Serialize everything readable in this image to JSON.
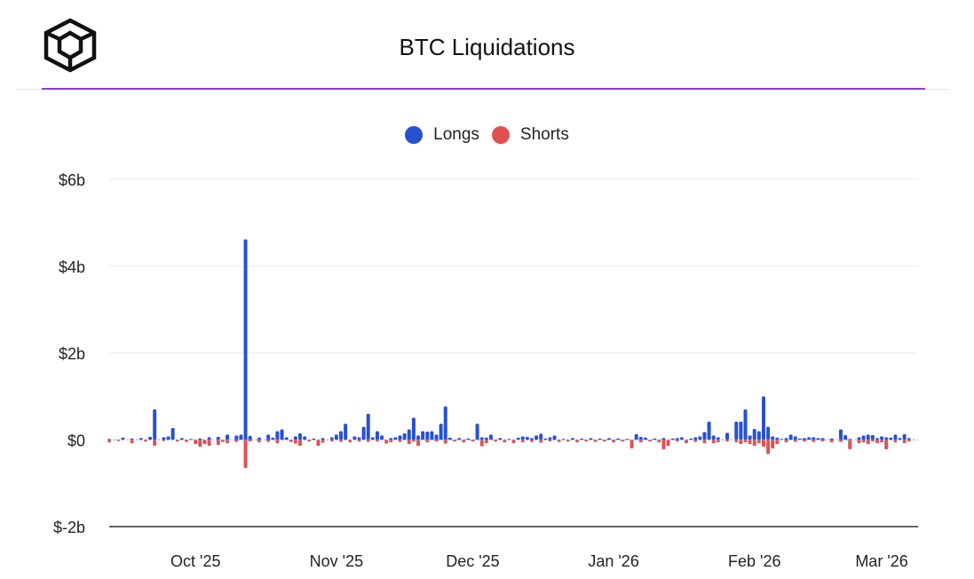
{
  "header": {
    "title": "BTC Liquidations",
    "logo_icon": "cube-logo-icon"
  },
  "colors": {
    "longs": "#2752cf",
    "shorts": "#e05252",
    "accent": "#9333ea",
    "grid": "#ebebeb",
    "axis": "#333333"
  },
  "chart_data": {
    "type": "bar",
    "title": "BTC Liquidations",
    "xlabel": "",
    "ylabel": "",
    "ylim": [
      -2,
      6
    ],
    "y_unit": "billions USD",
    "yticks": [
      6,
      4,
      2,
      0,
      -2
    ],
    "ytick_labels": [
      "$6b",
      "$4b",
      "$2b",
      "$0",
      "$-2b"
    ],
    "x_tick_labels": [
      {
        "label": "Oct '25",
        "day": 13
      },
      {
        "label": "Nov '25",
        "day": 44
      },
      {
        "label": "Dec '25",
        "day": 74
      },
      {
        "label": "Jan '26",
        "day": 105
      },
      {
        "label": "Feb '26",
        "day": 136
      },
      {
        "label": "Mar '26",
        "day": 164
      }
    ],
    "day_range": [
      -6,
      172
    ],
    "legend": [
      "Longs",
      "Shorts"
    ],
    "series": [
      {
        "name": "Longs",
        "values": [
          [
            -6,
            0.02
          ],
          [
            -3,
            0.05
          ],
          [
            -1,
            0.03
          ],
          [
            1,
            0.04
          ],
          [
            3,
            0.07
          ],
          [
            4,
            0.7
          ],
          [
            6,
            0.06
          ],
          [
            7,
            0.08
          ],
          [
            8,
            0.27
          ],
          [
            10,
            0.04
          ],
          [
            12,
            0.02
          ],
          [
            14,
            0.03
          ],
          [
            16,
            0.06
          ],
          [
            18,
            0.07
          ],
          [
            20,
            0.12
          ],
          [
            22,
            0.1
          ],
          [
            23,
            0.12
          ],
          [
            24,
            4.62
          ],
          [
            25,
            0.09
          ],
          [
            27,
            0.05
          ],
          [
            29,
            0.12
          ],
          [
            30,
            0.05
          ],
          [
            31,
            0.2
          ],
          [
            32,
            0.24
          ],
          [
            33,
            0.06
          ],
          [
            35,
            0.08
          ],
          [
            36,
            0.15
          ],
          [
            37,
            0.08
          ],
          [
            39,
            0.03
          ],
          [
            41,
            0.04
          ],
          [
            43,
            0.06
          ],
          [
            44,
            0.12
          ],
          [
            45,
            0.2
          ],
          [
            46,
            0.37
          ],
          [
            48,
            0.08
          ],
          [
            49,
            0.06
          ],
          [
            50,
            0.3
          ],
          [
            51,
            0.6
          ],
          [
            52,
            0.06
          ],
          [
            53,
            0.2
          ],
          [
            54,
            0.1
          ],
          [
            56,
            0.04
          ],
          [
            57,
            0.06
          ],
          [
            58,
            0.1
          ],
          [
            59,
            0.15
          ],
          [
            60,
            0.24
          ],
          [
            61,
            0.51
          ],
          [
            62,
            0.1
          ],
          [
            63,
            0.2
          ],
          [
            64,
            0.19
          ],
          [
            65,
            0.2
          ],
          [
            66,
            0.12
          ],
          [
            67,
            0.37
          ],
          [
            68,
            0.77
          ],
          [
            69,
            0.05
          ],
          [
            71,
            0.04
          ],
          [
            73,
            0.03
          ],
          [
            75,
            0.37
          ],
          [
            76,
            0.06
          ],
          [
            77,
            0.05
          ],
          [
            78,
            0.12
          ],
          [
            80,
            0.04
          ],
          [
            82,
            0.02
          ],
          [
            84,
            0.05
          ],
          [
            85,
            0.08
          ],
          [
            86,
            0.07
          ],
          [
            87,
            0.04
          ],
          [
            88,
            0.1
          ],
          [
            89,
            0.14
          ],
          [
            90,
            0.03
          ],
          [
            91,
            0.06
          ],
          [
            92,
            0.1
          ],
          [
            94,
            0.02
          ],
          [
            96,
            0.04
          ],
          [
            98,
            0.03
          ],
          [
            100,
            0.04
          ],
          [
            102,
            0.03
          ],
          [
            104,
            0.04
          ],
          [
            106,
            0.03
          ],
          [
            108,
            0.02
          ],
          [
            110,
            0.13
          ],
          [
            111,
            0.07
          ],
          [
            112,
            0.05
          ],
          [
            114,
            0.03
          ],
          [
            116,
            0.04
          ],
          [
            118,
            0.03
          ],
          [
            119,
            0.04
          ],
          [
            120,
            0.06
          ],
          [
            122,
            0.03
          ],
          [
            123,
            0.06
          ],
          [
            124,
            0.08
          ],
          [
            125,
            0.18
          ],
          [
            126,
            0.42
          ],
          [
            127,
            0.1
          ],
          [
            128,
            0.06
          ],
          [
            130,
            0.16
          ],
          [
            132,
            0.42
          ],
          [
            133,
            0.42
          ],
          [
            134,
            0.7
          ],
          [
            135,
            0.1
          ],
          [
            136,
            0.25
          ],
          [
            137,
            0.2
          ],
          [
            138,
            1.0
          ],
          [
            139,
            0.3
          ],
          [
            140,
            0.08
          ],
          [
            141,
            0.05
          ],
          [
            142,
            0.02
          ],
          [
            143,
            0.04
          ],
          [
            144,
            0.12
          ],
          [
            145,
            0.08
          ],
          [
            146,
            0.03
          ],
          [
            147,
            0.04
          ],
          [
            148,
            0.06
          ],
          [
            149,
            0.06
          ],
          [
            150,
            0.04
          ],
          [
            151,
            0.04
          ],
          [
            153,
            0.03
          ],
          [
            155,
            0.24
          ],
          [
            156,
            0.11
          ],
          [
            157,
            0.02
          ],
          [
            159,
            0.06
          ],
          [
            160,
            0.1
          ],
          [
            161,
            0.12
          ],
          [
            162,
            0.11
          ],
          [
            163,
            0.04
          ],
          [
            164,
            0.08
          ],
          [
            165,
            0.06
          ],
          [
            166,
            0.05
          ],
          [
            167,
            0.12
          ],
          [
            168,
            0.04
          ],
          [
            169,
            0.13
          ],
          [
            170,
            0.04
          ]
        ]
      },
      {
        "name": "Shorts",
        "values": [
          [
            -6,
            -0.06
          ],
          [
            -4,
            -0.03
          ],
          [
            -1,
            -0.08
          ],
          [
            2,
            -0.04
          ],
          [
            4,
            -0.14
          ],
          [
            6,
            -0.03
          ],
          [
            9,
            -0.04
          ],
          [
            11,
            -0.05
          ],
          [
            13,
            -0.1
          ],
          [
            14,
            -0.16
          ],
          [
            15,
            -0.1
          ],
          [
            16,
            -0.14
          ],
          [
            18,
            -0.12
          ],
          [
            19,
            -0.05
          ],
          [
            20,
            -0.08
          ],
          [
            22,
            -0.05
          ],
          [
            24,
            -0.65
          ],
          [
            25,
            -0.04
          ],
          [
            27,
            -0.06
          ],
          [
            29,
            -0.05
          ],
          [
            31,
            -0.08
          ],
          [
            34,
            -0.05
          ],
          [
            35,
            -0.09
          ],
          [
            36,
            -0.14
          ],
          [
            38,
            -0.04
          ],
          [
            40,
            -0.14
          ],
          [
            41,
            -0.07
          ],
          [
            43,
            -0.04
          ],
          [
            45,
            -0.05
          ],
          [
            47,
            -0.06
          ],
          [
            49,
            -0.04
          ],
          [
            51,
            -0.05
          ],
          [
            53,
            -0.04
          ],
          [
            55,
            -0.09
          ],
          [
            56,
            -0.06
          ],
          [
            58,
            -0.05
          ],
          [
            60,
            -0.1
          ],
          [
            61,
            -0.04
          ],
          [
            62,
            -0.14
          ],
          [
            64,
            -0.06
          ],
          [
            66,
            -0.04
          ],
          [
            68,
            -0.09
          ],
          [
            70,
            -0.04
          ],
          [
            72,
            -0.06
          ],
          [
            74,
            -0.04
          ],
          [
            76,
            -0.15
          ],
          [
            77,
            -0.08
          ],
          [
            79,
            -0.04
          ],
          [
            81,
            -0.06
          ],
          [
            83,
            -0.08
          ],
          [
            85,
            -0.06
          ],
          [
            87,
            -0.05
          ],
          [
            89,
            -0.07
          ],
          [
            91,
            -0.04
          ],
          [
            93,
            -0.05
          ],
          [
            95,
            -0.04
          ],
          [
            97,
            -0.06
          ],
          [
            99,
            -0.04
          ],
          [
            101,
            -0.05
          ],
          [
            103,
            -0.04
          ],
          [
            105,
            -0.06
          ],
          [
            107,
            -0.04
          ],
          [
            109,
            -0.2
          ],
          [
            111,
            -0.06
          ],
          [
            113,
            -0.04
          ],
          [
            115,
            -0.06
          ],
          [
            116,
            -0.22
          ],
          [
            117,
            -0.14
          ],
          [
            119,
            -0.04
          ],
          [
            121,
            -0.08
          ],
          [
            123,
            -0.05
          ],
          [
            125,
            -0.08
          ],
          [
            127,
            -0.08
          ],
          [
            128,
            -0.06
          ],
          [
            130,
            -0.04
          ],
          [
            132,
            -0.06
          ],
          [
            133,
            -0.1
          ],
          [
            134,
            -0.06
          ],
          [
            135,
            -0.1
          ],
          [
            136,
            -0.14
          ],
          [
            137,
            -0.08
          ],
          [
            138,
            -0.16
          ],
          [
            139,
            -0.33
          ],
          [
            140,
            -0.2
          ],
          [
            141,
            -0.1
          ],
          [
            143,
            -0.06
          ],
          [
            145,
            -0.05
          ],
          [
            147,
            -0.04
          ],
          [
            149,
            -0.05
          ],
          [
            151,
            -0.04
          ],
          [
            153,
            -0.06
          ],
          [
            155,
            -0.05
          ],
          [
            157,
            -0.22
          ],
          [
            159,
            -0.08
          ],
          [
            160,
            -0.06
          ],
          [
            161,
            -0.1
          ],
          [
            162,
            -0.04
          ],
          [
            163,
            -0.08
          ],
          [
            164,
            -0.06
          ],
          [
            165,
            -0.22
          ],
          [
            167,
            -0.06
          ],
          [
            169,
            -0.08
          ],
          [
            170,
            -0.04
          ]
        ]
      }
    ]
  }
}
